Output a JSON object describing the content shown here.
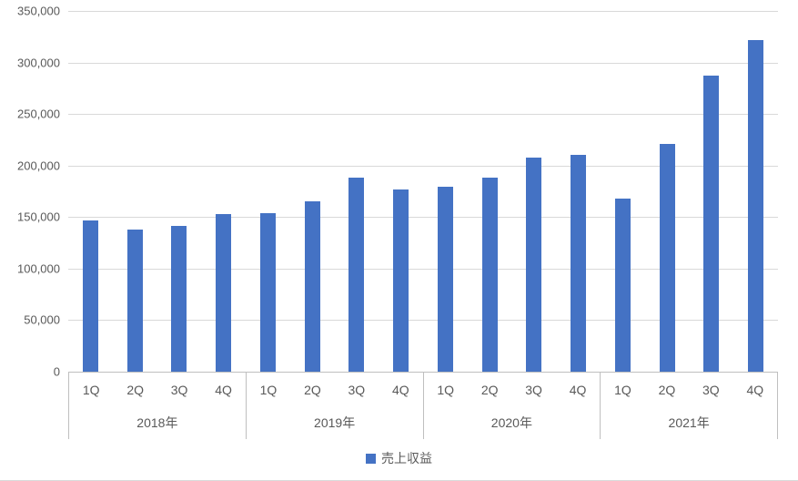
{
  "chart_data": {
    "type": "bar",
    "title": "",
    "xlabel": "",
    "ylabel": "",
    "legend": "売上収益",
    "legend_position": "bottom",
    "bar_color": "#4472C4",
    "gridline_color": "#D9D9D9",
    "axis_line_color": "#BFBFBF",
    "label_color": "#595959",
    "grid": true,
    "ylim": [
      0,
      350000
    ],
    "y_tick_step": 50000,
    "y_tick_labels": [
      "350,000",
      "300,000",
      "250,000",
      "200,000",
      "150,000",
      "100,000",
      "50,000",
      "0"
    ],
    "groups": [
      {
        "year": "2018年",
        "quarters": [
          "1Q",
          "2Q",
          "3Q",
          "4Q"
        ],
        "values": [
          147000,
          138000,
          141000,
          153000
        ]
      },
      {
        "year": "2019年",
        "quarters": [
          "1Q",
          "2Q",
          "3Q",
          "4Q"
        ],
        "values": [
          154000,
          165000,
          188000,
          177000
        ]
      },
      {
        "year": "2020年",
        "quarters": [
          "1Q",
          "2Q",
          "3Q",
          "4Q"
        ],
        "values": [
          179000,
          188000,
          208000,
          210000
        ]
      },
      {
        "year": "2021年",
        "quarters": [
          "1Q",
          "2Q",
          "3Q",
          "4Q"
        ],
        "values": [
          168000,
          221000,
          287000,
          322000
        ]
      }
    ],
    "series": [
      {
        "name": "売上収益",
        "values": [
          147000,
          138000,
          141000,
          153000,
          154000,
          165000,
          188000,
          177000,
          179000,
          188000,
          208000,
          210000,
          168000,
          221000,
          287000,
          322000
        ]
      }
    ]
  }
}
